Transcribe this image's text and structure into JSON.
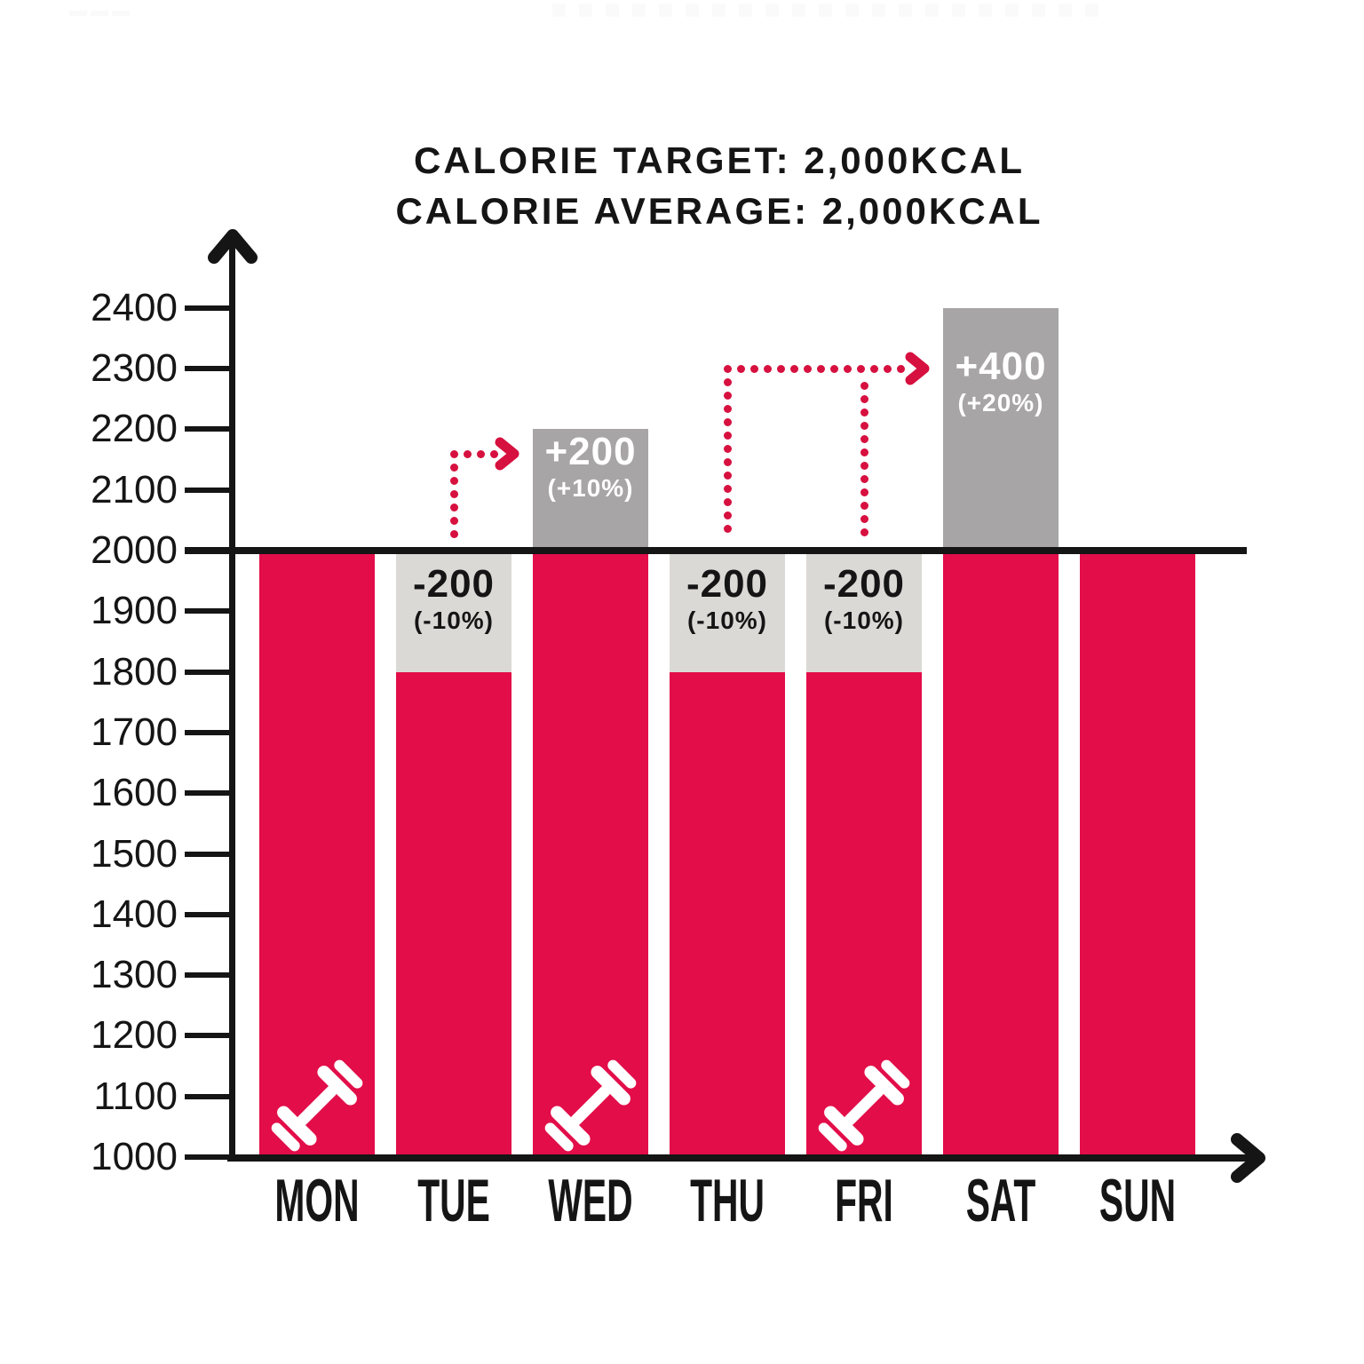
{
  "title": {
    "line1": "CALORIE TARGET: 2,000KCAL",
    "line2": "CALORIE AVERAGE: 2,000KCAL"
  },
  "chart_data": {
    "type": "bar",
    "categories": [
      "MON",
      "TUE",
      "WED",
      "THU",
      "FRI",
      "SAT",
      "SUN"
    ],
    "values": [
      2000,
      1800,
      2200,
      1800,
      1800,
      2400,
      2000
    ],
    "target": 2000,
    "average": 2000,
    "ylim": [
      1000,
      2400
    ],
    "y_ticks": [
      2400,
      2300,
      2200,
      2100,
      2000,
      1900,
      1800,
      1700,
      1600,
      1500,
      1400,
      1300,
      1200,
      1100,
      1000
    ],
    "grid": "off",
    "legend": "none",
    "bar_color": "#E20D49",
    "deficit_color": "#DBD9D6",
    "surplus_color": "#A7A5A6",
    "axis_color": "#151515",
    "arrow_color": "#D6103F",
    "workout_icon": "dumbbell-icon",
    "workout_days": [
      "MON",
      "WED",
      "FRI"
    ],
    "deltas": [
      {
        "day": "TUE",
        "label": "-200",
        "sub": "(-10%)",
        "kind": "deficit"
      },
      {
        "day": "WED",
        "label": "+200",
        "sub": "(+10%)",
        "kind": "surplus"
      },
      {
        "day": "THU",
        "label": "-200",
        "sub": "(-10%)",
        "kind": "deficit"
      },
      {
        "day": "FRI",
        "label": "-200",
        "sub": "(-10%)",
        "kind": "deficit"
      },
      {
        "day": "SAT",
        "label": "+400",
        "sub": "(+20%)",
        "kind": "surplus"
      }
    ],
    "arrows": [
      {
        "from": [
          "TUE"
        ],
        "to": "WED",
        "level": 2160
      },
      {
        "from": [
          "THU",
          "FRI"
        ],
        "to": "SAT",
        "level": 2300
      }
    ]
  }
}
